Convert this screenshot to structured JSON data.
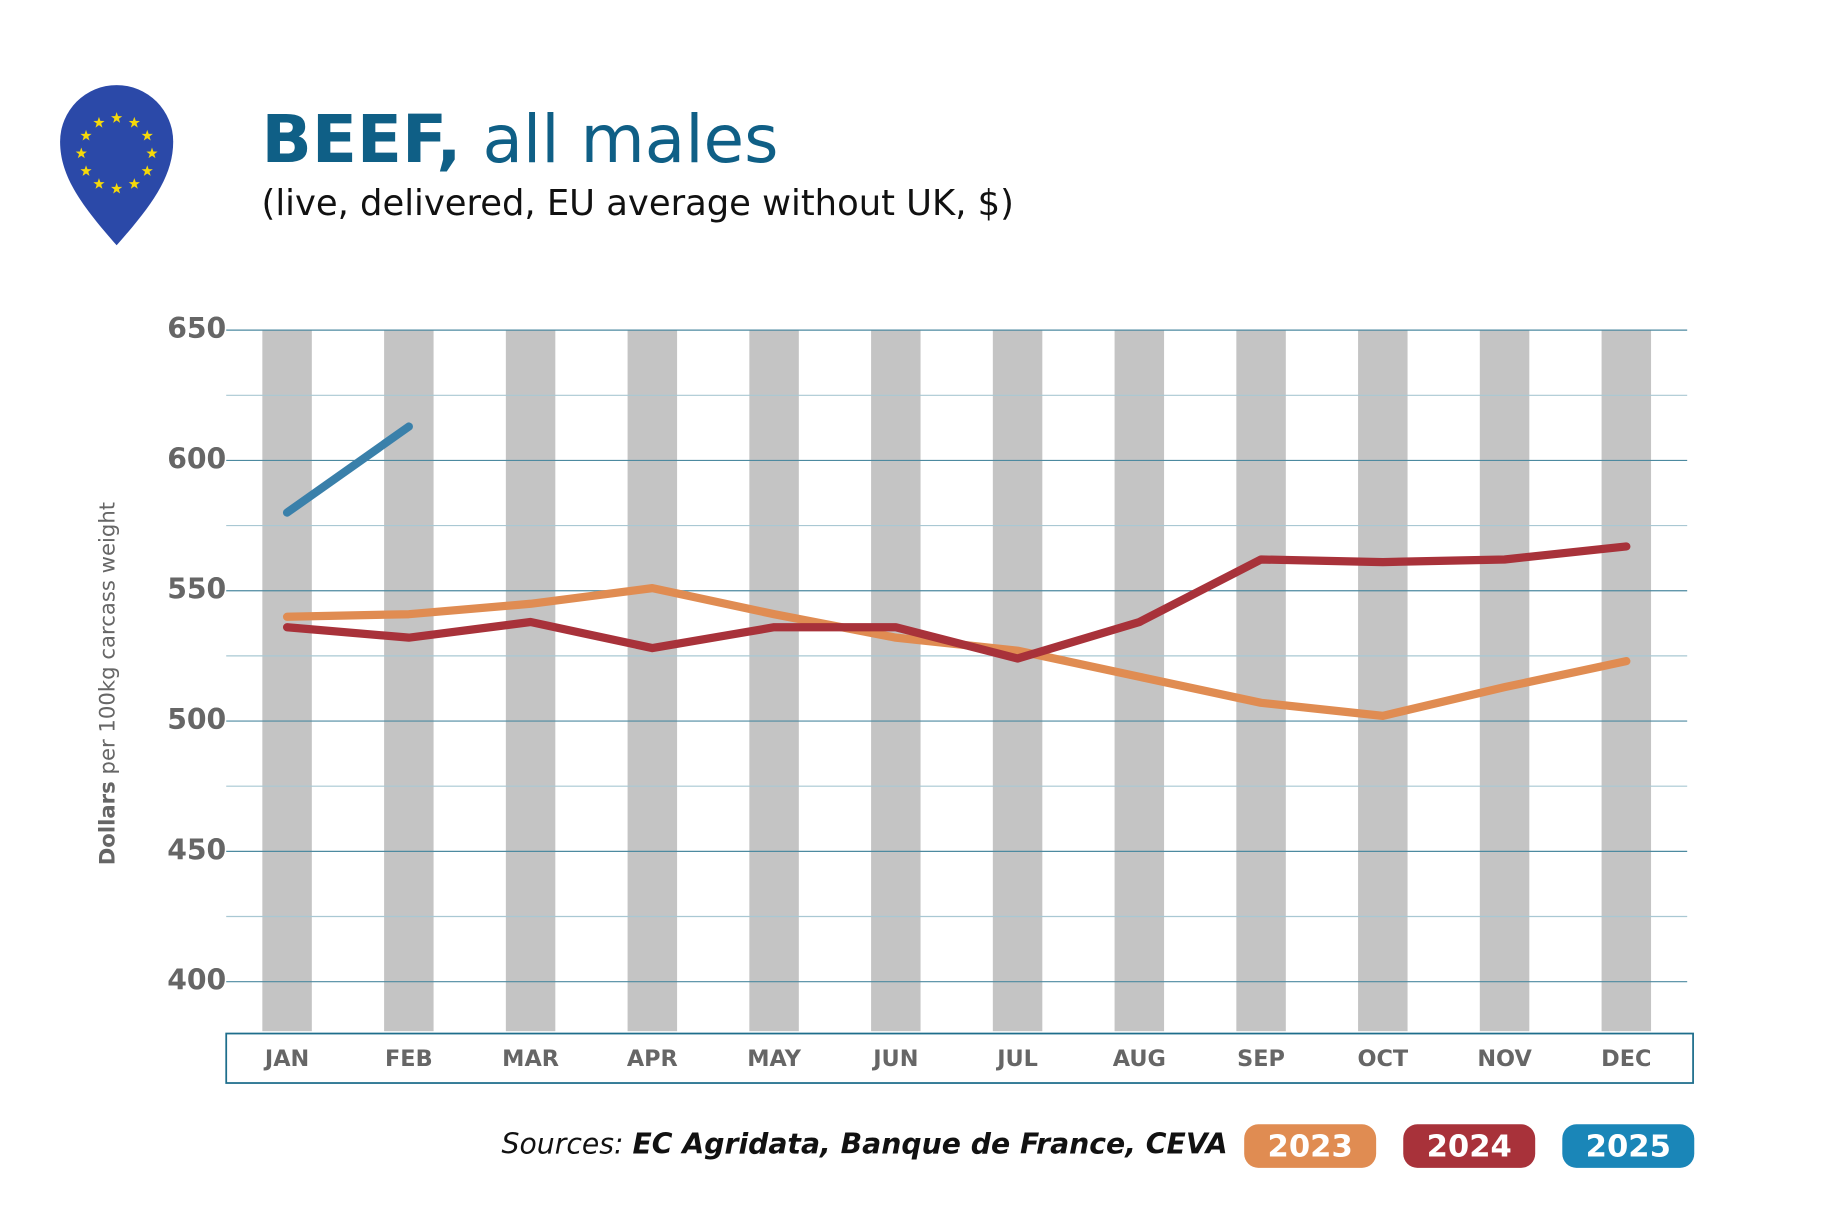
{
  "chart_data": {
    "type": "line",
    "title_bold": "BEEF,",
    "title": "all males",
    "subtitle": "(live, delivered, EU average without UK, $)",
    "y_label_bold": "Dollars",
    "y_label": "per 100kg carcass weight",
    "source_prefix": "Sources:",
    "source": "EC Agridata, Banque de France, CEVA",
    "categories": [
      "JAN",
      "FEB",
      "MAR",
      "APR",
      "MAY",
      "JUN",
      "JUL",
      "AUG",
      "SEP",
      "OCT",
      "NOV",
      "DEC"
    ],
    "series": [
      {
        "name": "2023",
        "color": "#e08c52",
        "values": [
          540,
          541,
          545,
          551,
          541,
          532,
          527,
          517,
          507,
          502,
          513,
          523
        ]
      },
      {
        "name": "2024",
        "color": "#a8323a",
        "values": [
          536,
          532,
          538,
          528,
          536,
          536,
          524,
          538,
          562,
          561,
          562,
          567
        ]
      },
      {
        "name": "2025",
        "color": "#3a80aa",
        "legend_color": "#1a86b8",
        "values": [
          580,
          613,
          null,
          null,
          null,
          null,
          null,
          null,
          null,
          null,
          null,
          null
        ]
      }
    ],
    "ylim": [
      381,
      650
    ],
    "yticks": [
      400,
      450,
      500,
      550,
      600,
      650
    ],
    "yticks_minor": [
      425,
      475,
      525,
      575,
      625
    ],
    "grid": true
  }
}
